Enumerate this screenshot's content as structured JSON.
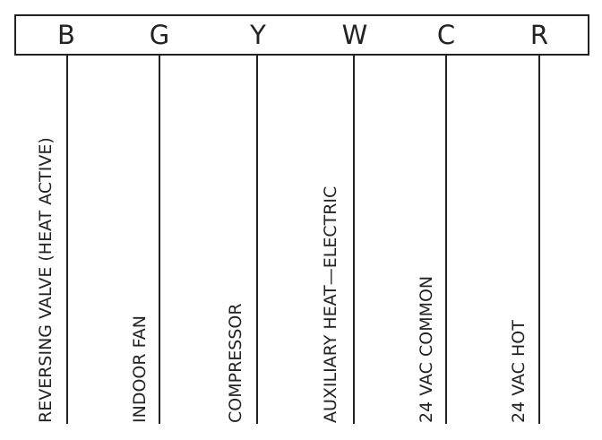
{
  "terminals": [
    {
      "letter": "B",
      "function": "REVERSING VALVE (HEAT ACTIVE)"
    },
    {
      "letter": "G",
      "function": "INDOOR FAN"
    },
    {
      "letter": "Y",
      "function": "COMPRESSOR"
    },
    {
      "letter": "W",
      "function": "AUXILIARY HEAT—ELECTRIC"
    },
    {
      "letter": "C",
      "function": "24 VAC COMMON"
    },
    {
      "letter": "R",
      "function": "24 VAC HOT"
    }
  ],
  "colors": {
    "line": "#222222",
    "background": "#ffffff"
  }
}
